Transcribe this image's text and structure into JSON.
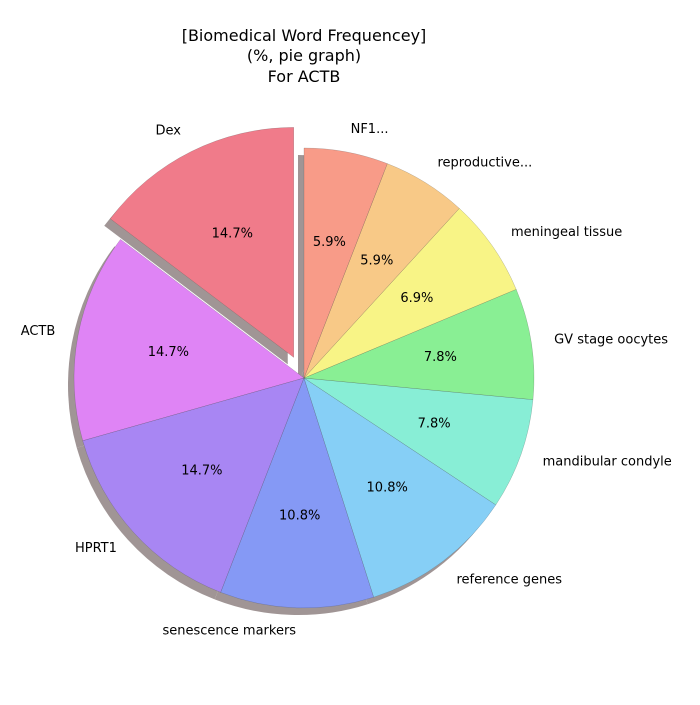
{
  "chart_data": {
    "type": "pie",
    "title_lines": [
      "[Biomedical Word Frequencey]",
      "(%, pie graph)",
      "For ACTB"
    ],
    "labels": [
      "Dex",
      "ACTB",
      "HPRT1",
      "senescence markers",
      "reference genes",
      "mandibular condyle",
      "GV stage oocytes",
      "meningeal tissue",
      "reproductive...",
      "NF1..."
    ],
    "values": [
      14.7,
      14.7,
      14.7,
      10.8,
      10.8,
      7.8,
      7.8,
      6.9,
      5.9,
      5.9
    ],
    "pct_labels": [
      "14.7%",
      "14.7%",
      "14.7%",
      "10.8%",
      "10.8%",
      "7.8%",
      "7.8%",
      "6.9%",
      "5.9%",
      "5.9%"
    ],
    "colors": [
      "#f07b8a",
      "#df84f5",
      "#a886f3",
      "#8599f5",
      "#86cff6",
      "#88eed6",
      "#89ef94",
      "#f8f486",
      "#f8c987",
      "#f89b88"
    ],
    "exploded": [
      "Dex"
    ],
    "start_angle_deg": 90,
    "direction": "counterclockwise",
    "shadow": true,
    "legend": "none"
  }
}
